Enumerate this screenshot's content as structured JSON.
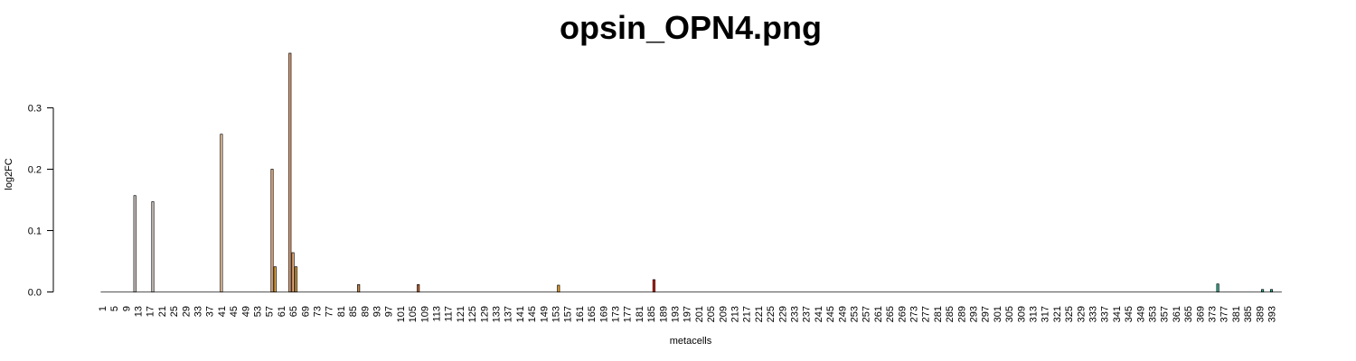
{
  "chart_data": {
    "type": "bar",
    "title": "opsin_OPN4.png",
    "xlabel": "metacells",
    "ylabel": "log2FC",
    "x_range": [
      1,
      396
    ],
    "ylim": [
      0,
      0.39
    ],
    "y_ticks": [
      "0.0",
      "0.1",
      "0.2",
      "0.3"
    ],
    "x_ticks": [
      "1",
      "5",
      "9",
      "13",
      "17",
      "21",
      "25",
      "29",
      "33",
      "37",
      "41",
      "45",
      "49",
      "53",
      "57",
      "61",
      "65",
      "69",
      "73",
      "77",
      "81",
      "85",
      "89",
      "93",
      "97",
      "101",
      "105",
      "109",
      "113",
      "117",
      "121",
      "125",
      "129",
      "133",
      "137",
      "141",
      "145",
      "149",
      "153",
      "157",
      "161",
      "165",
      "169",
      "173",
      "177",
      "181",
      "185",
      "189",
      "193",
      "197",
      "201",
      "205",
      "209",
      "213",
      "217",
      "221",
      "225",
      "229",
      "233",
      "237",
      "241",
      "245",
      "249",
      "253",
      "257",
      "261",
      "265",
      "269",
      "273",
      "277",
      "281",
      "285",
      "289",
      "293",
      "297",
      "301",
      "305",
      "309",
      "313",
      "317",
      "321",
      "325",
      "329",
      "333",
      "337",
      "341",
      "345",
      "349",
      "353",
      "357",
      "361",
      "365",
      "369",
      "373",
      "377",
      "381",
      "385",
      "389",
      "393"
    ],
    "grid": false,
    "legend": "none",
    "bars": [
      {
        "x": 12,
        "value": 0.157,
        "color": "#d6ccc6"
      },
      {
        "x": 18,
        "value": 0.147,
        "color": "#d6ccc6"
      },
      {
        "x": 41,
        "value": 0.257,
        "color": "#f2c79e"
      },
      {
        "x": 58,
        "value": 0.2,
        "color": "#f2b07a"
      },
      {
        "x": 59,
        "value": 0.041,
        "color": "#f0b040"
      },
      {
        "x": 64,
        "value": 0.389,
        "color": "#e8a070"
      },
      {
        "x": 65,
        "value": 0.064,
        "color": "#f2b07a"
      },
      {
        "x": 66,
        "value": 0.041,
        "color": "#f0a840"
      },
      {
        "x": 87,
        "value": 0.012,
        "color": "#c8864a"
      },
      {
        "x": 107,
        "value": 0.012,
        "color": "#c86430"
      },
      {
        "x": 154,
        "value": 0.011,
        "color": "#f0a020"
      },
      {
        "x": 186,
        "value": 0.02,
        "color": "#e82000"
      },
      {
        "x": 375,
        "value": 0.013,
        "color": "#30b090"
      },
      {
        "x": 390,
        "value": 0.004,
        "color": "#30b090"
      },
      {
        "x": 393,
        "value": 0.004,
        "color": "#30b090"
      }
    ]
  }
}
